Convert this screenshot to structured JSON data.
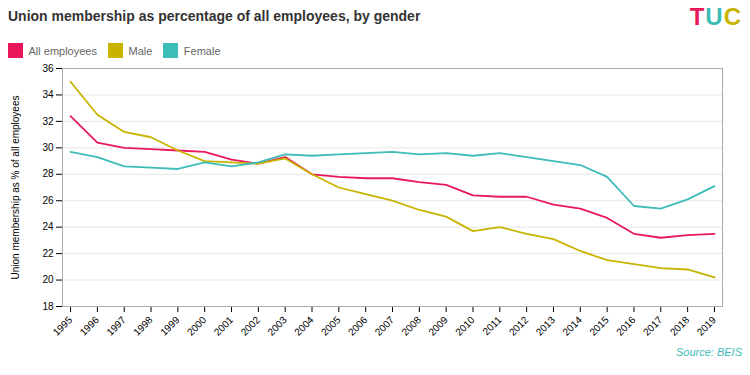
{
  "chart_data": {
    "type": "line",
    "title": "Union membership as percentage of all employees, by gender",
    "ylabel": "Union membership as % of all employees",
    "x": [
      1995,
      1996,
      1997,
      1998,
      1999,
      2000,
      2001,
      2002,
      2003,
      2004,
      2005,
      2006,
      2007,
      2008,
      2009,
      2010,
      2011,
      2012,
      2013,
      2014,
      2015,
      2016,
      2017,
      2018,
      2019
    ],
    "series": [
      {
        "name": "All employees",
        "color": "#e8185a",
        "values": [
          32.4,
          30.4,
          30.0,
          29.9,
          29.8,
          29.7,
          29.1,
          28.8,
          29.3,
          28.0,
          27.8,
          27.7,
          27.7,
          27.4,
          27.2,
          26.4,
          26.3,
          26.3,
          25.7,
          25.4,
          24.7,
          23.5,
          23.2,
          23.4,
          23.5
        ]
      },
      {
        "name": "Male",
        "color": "#c8b400",
        "values": [
          35.0,
          32.5,
          31.2,
          30.8,
          29.8,
          29.0,
          28.9,
          28.8,
          29.2,
          28.0,
          27.0,
          26.5,
          26.0,
          25.3,
          24.8,
          23.7,
          24.0,
          23.5,
          23.1,
          22.2,
          21.5,
          21.2,
          20.9,
          20.8,
          20.2
        ]
      },
      {
        "name": "Female",
        "color": "#3dbcb8",
        "values": [
          29.7,
          29.3,
          28.6,
          28.5,
          28.4,
          28.9,
          28.6,
          28.9,
          29.5,
          29.4,
          29.5,
          29.6,
          29.7,
          29.5,
          29.6,
          29.4,
          29.6,
          29.3,
          29.0,
          28.7,
          27.8,
          25.6,
          25.4,
          26.1,
          27.1
        ]
      }
    ],
    "xlim": [
      1994.7,
      2019.3
    ],
    "xticks": [
      1995,
      1996,
      1997,
      1998,
      1999,
      2000,
      2001,
      2002,
      2003,
      2004,
      2005,
      2006,
      2007,
      2008,
      2009,
      2010,
      2011,
      2012,
      2013,
      2014,
      2015,
      2016,
      2017,
      2018,
      2019
    ],
    "ylim": [
      18,
      36
    ],
    "yticks": [
      18,
      20,
      22,
      24,
      26,
      28,
      30,
      32,
      34,
      36
    ],
    "grid": true,
    "legend": "top",
    "annotations": [
      {
        "text": "Source: BEIS",
        "color": "#3dbcb8"
      },
      {
        "text": "T",
        "color": "#e8185a"
      },
      {
        "text": "U",
        "color": "#3dbcb8"
      },
      {
        "text": "C",
        "color": "#c8b400"
      }
    ]
  }
}
